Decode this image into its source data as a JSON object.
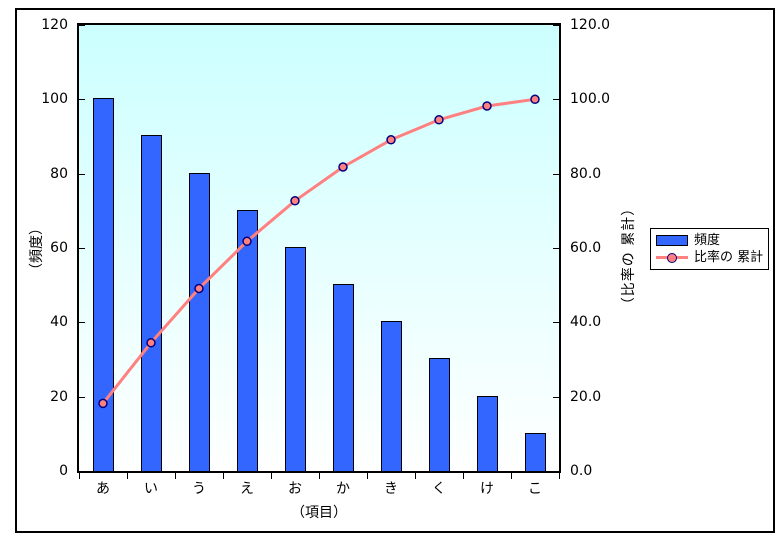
{
  "chart_data": {
    "type": "bar",
    "subtype": "pareto-combo-bar-line",
    "title": "",
    "xlabel": "（項目）",
    "ylabel_left": "（頻度）",
    "ylabel_right": "（比率の 累計）",
    "categories": [
      "あ",
      "い",
      "う",
      "え",
      "お",
      "か",
      "き",
      "く",
      "け",
      "こ"
    ],
    "series": [
      {
        "name": "頻度",
        "type": "bar",
        "axis": "left",
        "values": [
          100,
          90,
          80,
          70,
          60,
          50,
          40,
          30,
          20,
          10
        ]
      },
      {
        "name": "比率の 累計",
        "type": "line",
        "axis": "right",
        "values": [
          18.2,
          34.5,
          49.1,
          61.8,
          72.7,
          81.8,
          89.1,
          94.5,
          98.2,
          100.0
        ]
      }
    ],
    "ylim_left": [
      0,
      120
    ],
    "ylim_right": [
      0,
      120
    ],
    "yticks_left": [
      "0",
      "20",
      "40",
      "60",
      "80",
      "100",
      "120"
    ],
    "yticks_right": [
      "0.0",
      "20.0",
      "40.0",
      "60.0",
      "80.0",
      "100.0",
      "120.0"
    ],
    "grid": false,
    "legend_position": "right-middle",
    "plot_background": "gradient cyan to white"
  },
  "legend": {
    "items": [
      {
        "label": "頻度",
        "swatch": "bar"
      },
      {
        "label": "比率の 累計",
        "swatch": "line-marker"
      }
    ]
  },
  "colors": {
    "bar_fill": "#3366ff",
    "bar_border": "#000000",
    "line": "#ff8080",
    "marker_fill": "#ff8080",
    "marker_border": "#000080",
    "plot_bg_top": "#ccffff",
    "plot_bg_bottom": "#ffffff",
    "axis_line": "#000000",
    "text": "#000000",
    "frame_border": "#000000",
    "legend_bg": "#ffffff"
  }
}
